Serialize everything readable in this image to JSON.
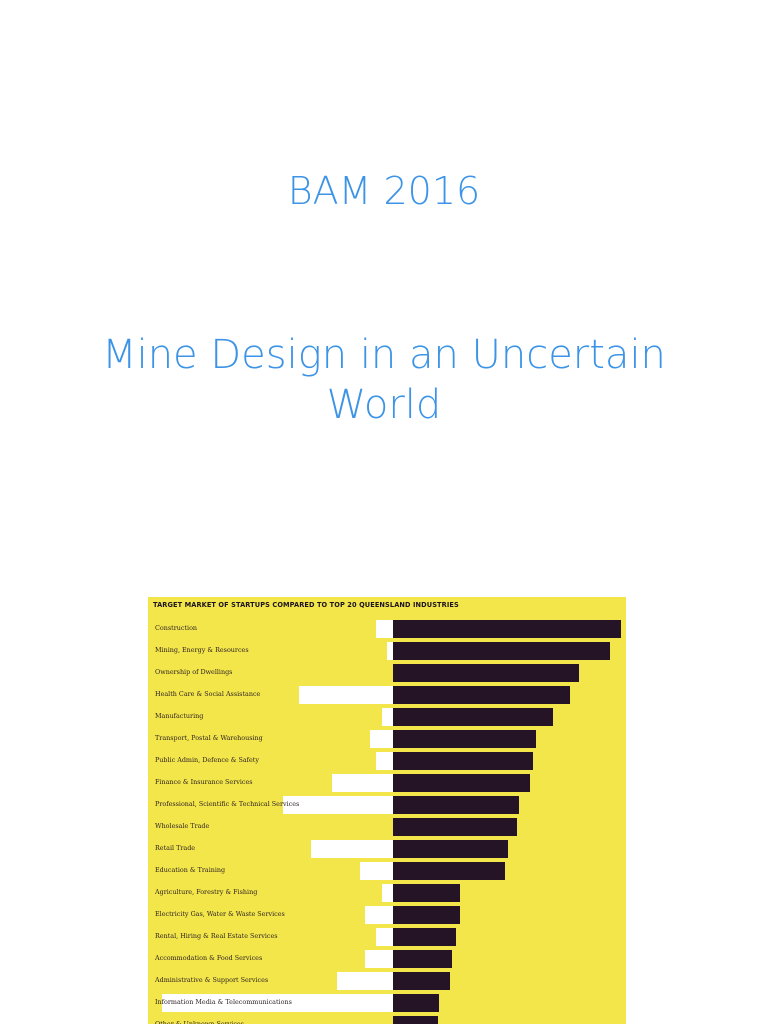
{
  "slide": {
    "title": "BAM 2016",
    "subtitle_line1": "Mine Design in an Uncertain",
    "subtitle_line2": "World"
  },
  "colors": {
    "title": "#3d94e6",
    "chart_background": "#f3e64a",
    "industry_bar": "#241426",
    "startup_bar": "#ffffff"
  },
  "chart_data": {
    "type": "bar",
    "title": "TARGET MARKET OF STARTUPS COMPARED TO TOP 20 QUEENSLAND INDUSTRIES",
    "orientation": "horizontal-diverging",
    "categories": [
      "Construction",
      "Mining, Energy & Resources",
      "Ownership of Dwellings",
      "Health Care & Social Assistance",
      "Manufacturing",
      "Transport, Postal & Warehousing",
      "Public Admin, Defence & Safety",
      "Finance & Insurance Services",
      "Professional, Scientific & Technical Services",
      "Wholesale Trade",
      "Retail Trade",
      "Education & Training",
      "Agriculture, Forestry & Fishing",
      "Electricity Gas, Water & Waste Services",
      "Rental, Hiring & Real Estate Services",
      "Accommodation & Food Services",
      "Administrative & Support Services",
      "Information Media & Telecommunications",
      "Other & Unknown Services"
    ],
    "series": [
      {
        "values": [
          228,
          217,
          186,
          177,
          160,
          143,
          140,
          137,
          126,
          124,
          115,
          112,
          67,
          67,
          63,
          59,
          57,
          46,
          45
        ]
      },
      {
        "values": [
          17,
          6,
          0,
          94,
          11,
          23,
          17,
          61,
          110,
          0,
          82,
          33,
          11,
          28,
          17,
          28,
          56,
          231,
          0
        ]
      }
    ]
  }
}
